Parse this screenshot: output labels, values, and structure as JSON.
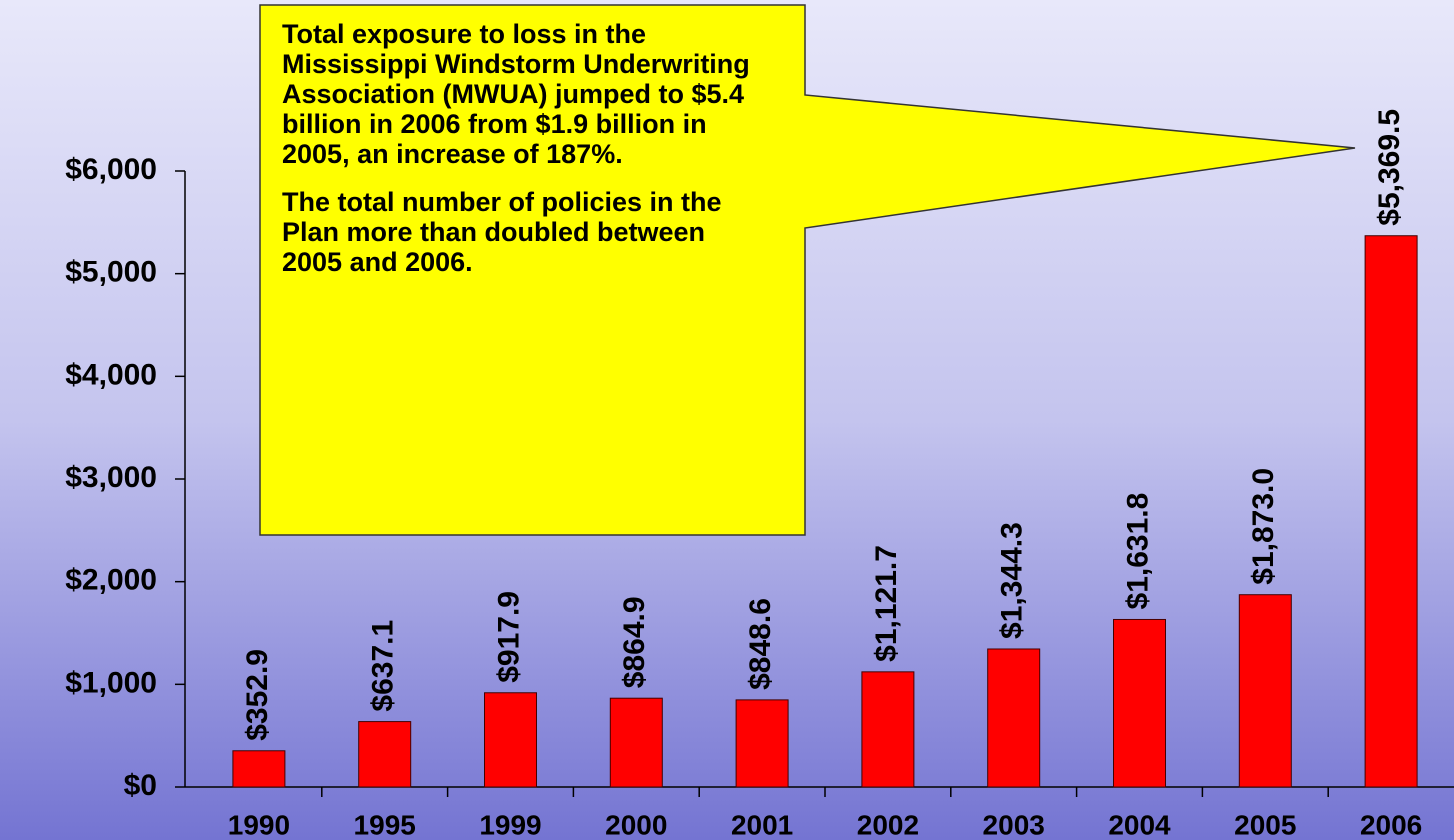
{
  "chart_data": {
    "type": "bar",
    "categories": [
      "1990",
      "1995",
      "1999",
      "2000",
      "2001",
      "2002",
      "2003",
      "2004",
      "2005",
      "2006"
    ],
    "values": [
      352.9,
      637.1,
      917.9,
      864.9,
      848.6,
      1121.7,
      1344.3,
      1631.8,
      1873.0,
      5369.5
    ],
    "value_labels": [
      "$352.9",
      "$637.1",
      "$917.9",
      "$864.9",
      "$848.6",
      "$1,121.7",
      "$1,344.3",
      "$1,631.8",
      "$1,873.0",
      "$5,369.5"
    ],
    "color": "#ff0000",
    "ylim": [
      0,
      6000
    ],
    "yticks": [
      {
        "value": 0,
        "label": "$0"
      },
      {
        "value": 1000,
        "label": "$1,000"
      },
      {
        "value": 2000,
        "label": "$2,000"
      },
      {
        "value": 3000,
        "label": "$3,000"
      },
      {
        "value": 4000,
        "label": "$4,000"
      },
      {
        "value": 5000,
        "label": "$5,000"
      },
      {
        "value": 6000,
        "label": "$6,000"
      }
    ],
    "grid": false,
    "annotations": [
      "Total exposure to loss in the Mississippi Windstorm Underwriting Association (MWUA) jumped to $5.4 billion in 2006 from $1.9 billion in 2005, an increase of 187%.",
      "The total number of policies in the Plan more than doubled between 2005 and 2006."
    ]
  }
}
